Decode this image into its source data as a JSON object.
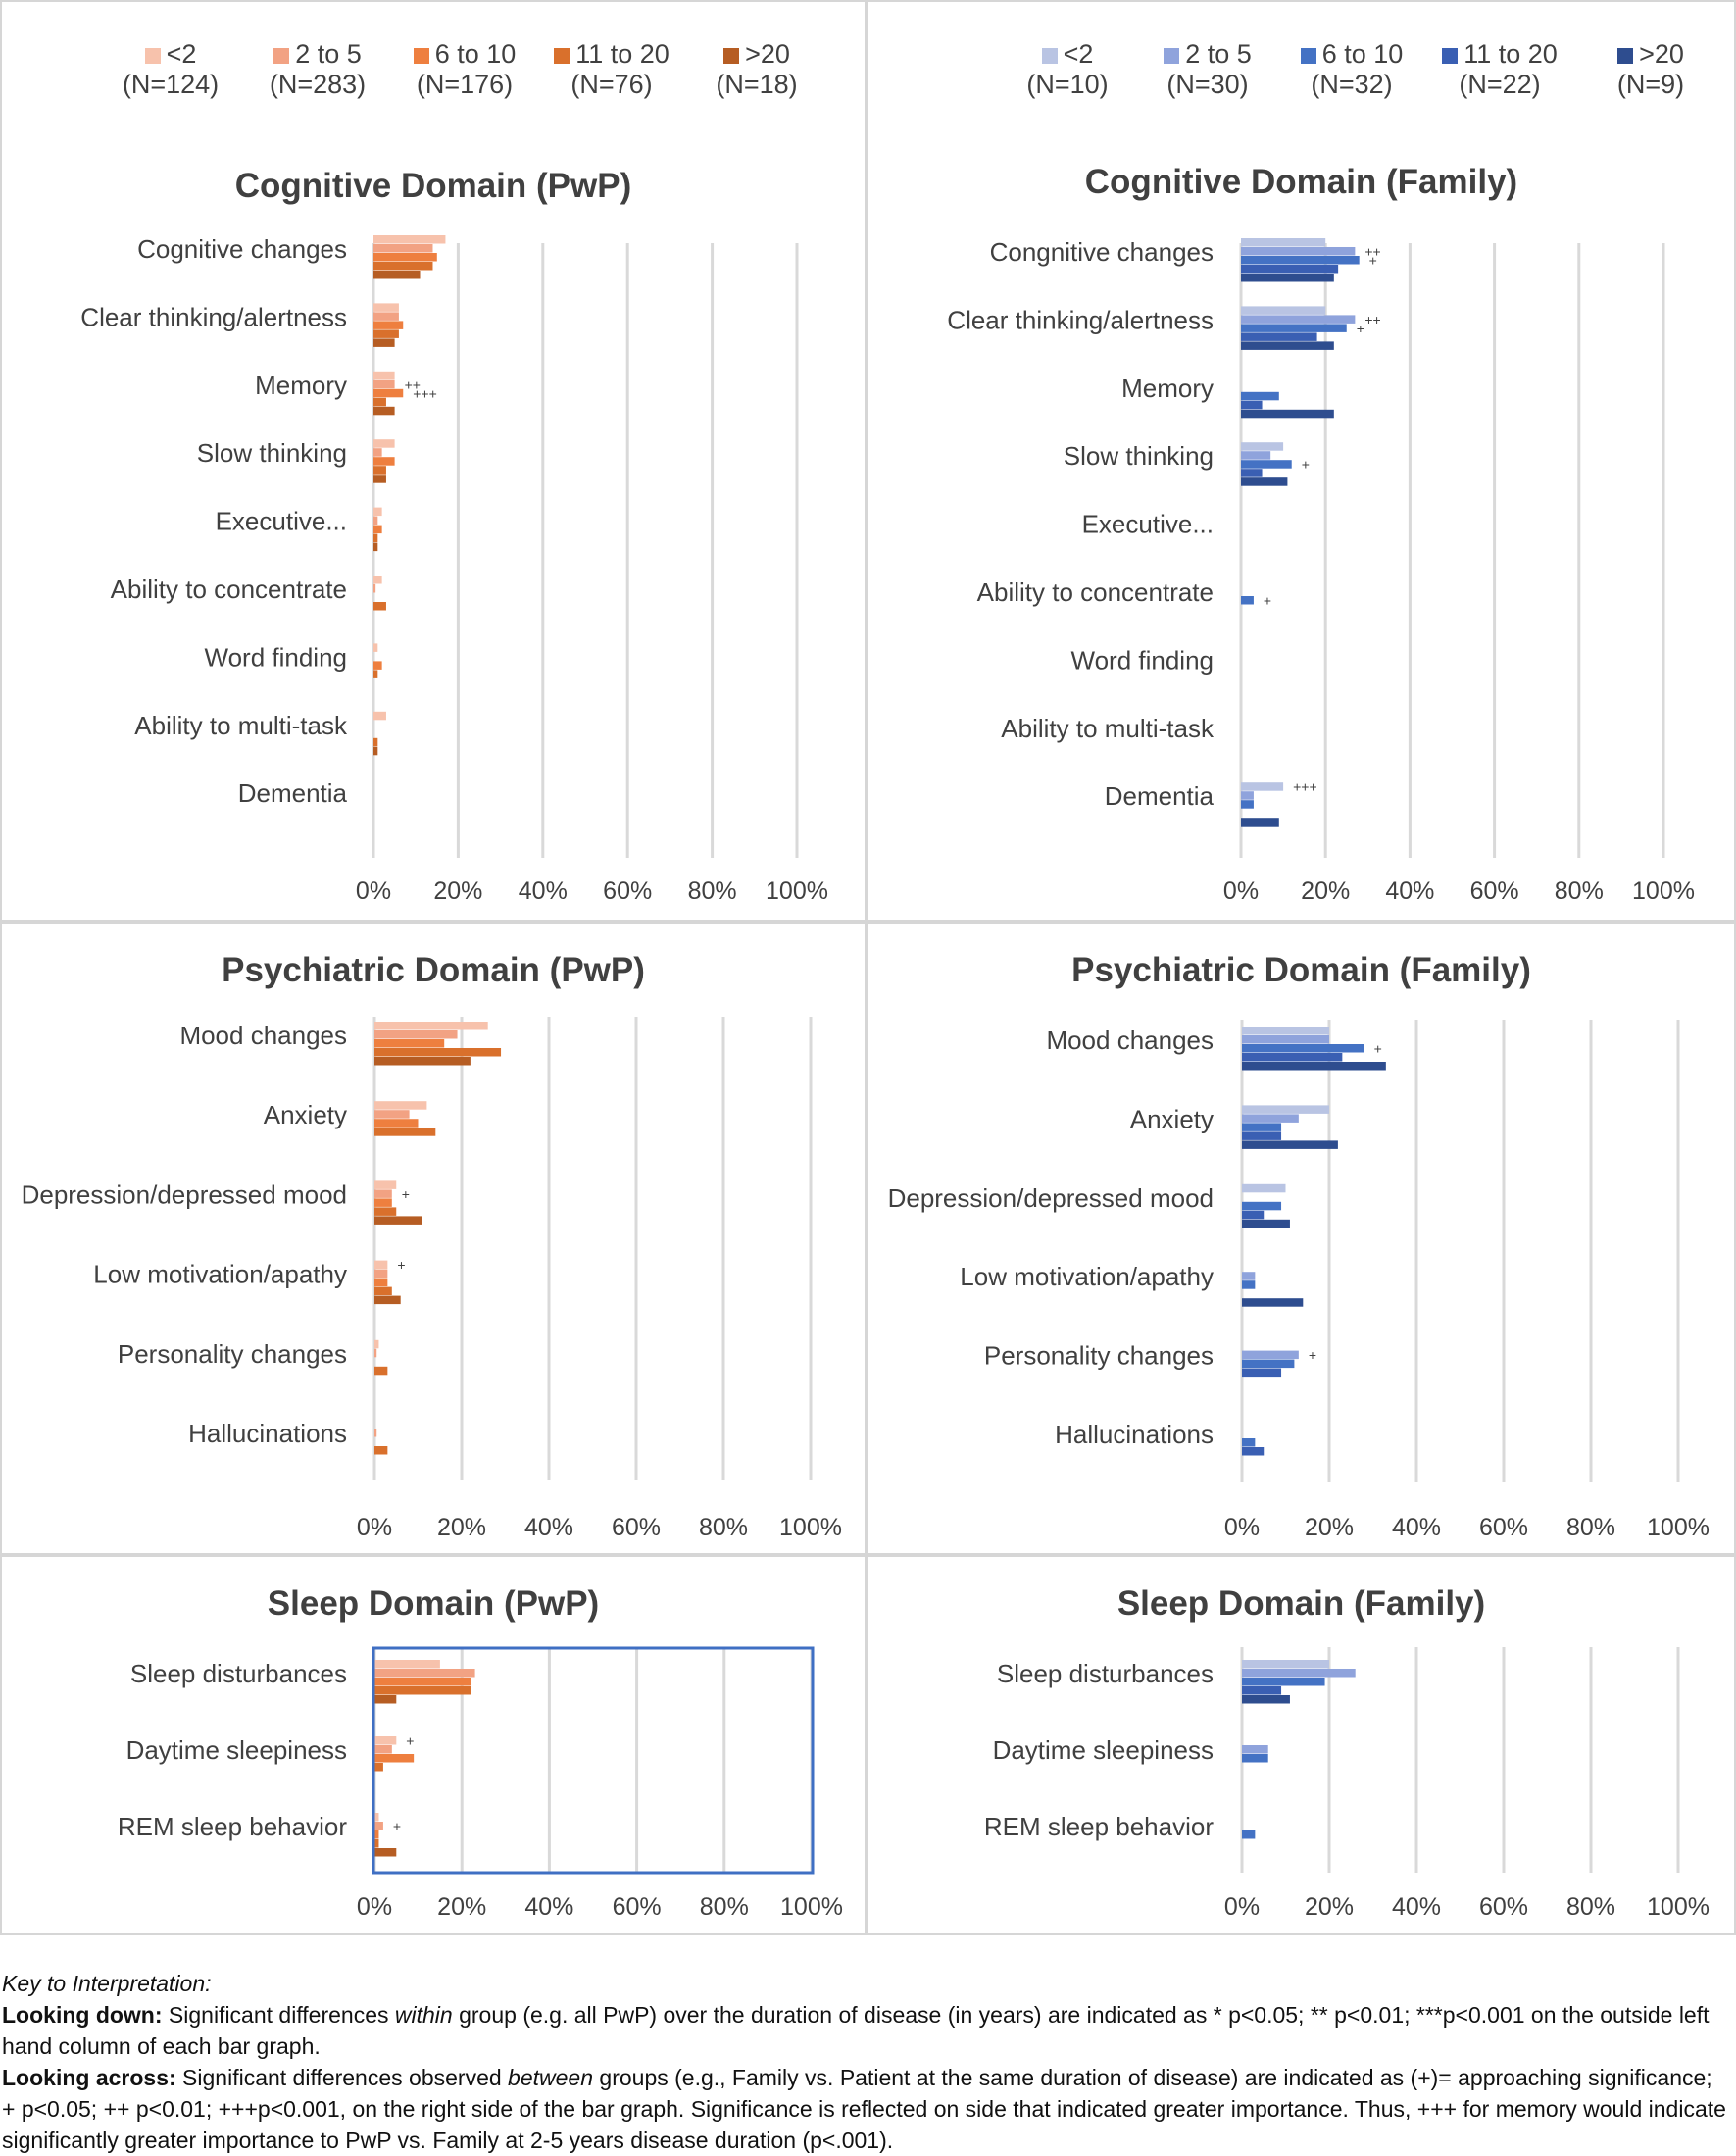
{
  "colors": {
    "pwp": [
      "#f7c2ac",
      "#f2a283",
      "#ee7f3f",
      "#d9702c",
      "#b65d23"
    ],
    "family": [
      "#b9c4e3",
      "#8fa3dc",
      "#4472c4",
      "#3a5fb3",
      "#2e4d8f"
    ],
    "grid": "#d9d9d9",
    "highlight": "#3f6fc3"
  },
  "legend_pwp": [
    {
      "label": "<2",
      "n": "(N=124)"
    },
    {
      "label": "2 to 5",
      "n": "(N=283)"
    },
    {
      "label": "6 to 10",
      "n": "(N=176)"
    },
    {
      "label": "11 to 20",
      "n": "(N=76)"
    },
    {
      "label": ">20",
      "n": "(N=18)"
    }
  ],
  "legend_family": [
    {
      "label": "<2",
      "n": "(N=10)"
    },
    {
      "label": "2 to 5",
      "n": "(N=30)"
    },
    {
      "label": "6 to 10",
      "n": "(N=32)"
    },
    {
      "label": "11 to 20",
      "n": "(N=22)"
    },
    {
      "label": ">20",
      "n": "(N=9)"
    }
  ],
  "chart_data": [
    {
      "type": "bar",
      "orientation": "horizontal",
      "group": "pwp",
      "title": "Cognitive Domain (PwP)",
      "xlim": [
        0,
        100
      ],
      "xticks": [
        "0%",
        "20%",
        "40%",
        "60%",
        "80%",
        "100%"
      ],
      "categories": [
        "Cognitive changes",
        "Clear thinking/alertness",
        "Memory",
        "Slow thinking",
        "Executive...",
        "Ability to concentrate",
        "Word finding",
        "Ability to multi-task",
        "Dementia"
      ],
      "series": [
        {
          "name": "<2",
          "values": [
            17,
            6,
            5,
            5,
            2,
            2,
            1,
            3,
            0
          ]
        },
        {
          "name": "2 to 5",
          "values": [
            14,
            6,
            5,
            2,
            1,
            0.5,
            0,
            0,
            0
          ]
        },
        {
          "name": "6 to 10",
          "values": [
            15,
            7,
            7,
            5,
            2,
            0,
            2,
            0,
            0
          ]
        },
        {
          "name": "11 to 20",
          "values": [
            14,
            6,
            3,
            3,
            1,
            3,
            1,
            1,
            0
          ]
        },
        {
          "name": ">20",
          "values": [
            11,
            5,
            5,
            3,
            1,
            0,
            0,
            1,
            0
          ]
        }
      ],
      "annotations": [
        {
          "category": "Memory",
          "series": "2 to 5",
          "text": "++"
        },
        {
          "category": "Memory",
          "series": "6 to 10",
          "text": "+++"
        }
      ]
    },
    {
      "type": "bar",
      "orientation": "horizontal",
      "group": "family",
      "title": "Cognitive Domain (Family)",
      "xlim": [
        0,
        100
      ],
      "xticks": [
        "0%",
        "20%",
        "40%",
        "60%",
        "80%",
        "100%"
      ],
      "categories": [
        "Congnitive changes",
        "Clear thinking/alertness",
        "Memory",
        "Slow thinking",
        "Executive...",
        "Ability to concentrate",
        "Word finding",
        "Ability to multi-task",
        "Dementia"
      ],
      "series": [
        {
          "name": "<2",
          "values": [
            20,
            20,
            0,
            10,
            0,
            0,
            0,
            0,
            10
          ]
        },
        {
          "name": "2 to 5",
          "values": [
            27,
            27,
            0,
            7,
            0,
            0,
            0,
            0,
            3
          ]
        },
        {
          "name": "6 to 10",
          "values": [
            28,
            25,
            9,
            12,
            0,
            3,
            0,
            0,
            3
          ]
        },
        {
          "name": "11 to 20",
          "values": [
            23,
            18,
            5,
            5,
            0,
            0,
            0,
            0,
            0
          ]
        },
        {
          "name": ">20",
          "values": [
            22,
            22,
            22,
            11,
            0,
            0,
            0,
            0,
            9
          ]
        }
      ],
      "annotations": [
        {
          "category": "Congnitive changes",
          "series": "2 to 5",
          "text": "++"
        },
        {
          "category": "Congnitive changes",
          "series": "6 to 10",
          "text": "+"
        },
        {
          "category": "Clear thinking/alertness",
          "series": "2 to 5",
          "text": "++"
        },
        {
          "category": "Clear thinking/alertness",
          "series": "6 to 10",
          "text": "+"
        },
        {
          "category": "Slow thinking",
          "series": "6 to 10",
          "text": "+"
        },
        {
          "category": "Ability to concentrate",
          "series": "6 to 10",
          "text": "+"
        },
        {
          "category": "Dementia",
          "series": "<2",
          "text": "+++"
        }
      ]
    },
    {
      "type": "bar",
      "orientation": "horizontal",
      "group": "pwp",
      "title": "Psychiatric Domain (PwP)",
      "xlim": [
        0,
        100
      ],
      "xticks": [
        "0%",
        "20%",
        "40%",
        "60%",
        "80%",
        "100%"
      ],
      "categories": [
        "Mood changes",
        "Anxiety",
        "Depression/depressed mood",
        "Low motivation/apathy",
        "Personality changes",
        "Hallucinations"
      ],
      "series": [
        {
          "name": "<2",
          "values": [
            26,
            12,
            5,
            3,
            1,
            0
          ]
        },
        {
          "name": "2 to 5",
          "values": [
            19,
            8,
            4,
            3,
            0.5,
            0.5
          ]
        },
        {
          "name": "6 to 10",
          "values": [
            16,
            10,
            4,
            3,
            0,
            0
          ]
        },
        {
          "name": "11 to 20",
          "values": [
            29,
            14,
            5,
            4,
            3,
            3
          ]
        },
        {
          "name": ">20",
          "values": [
            22,
            0,
            11,
            6,
            0,
            0
          ]
        }
      ],
      "annotations": [
        {
          "category": "Depression/depressed mood",
          "series": "2 to 5",
          "text": "+"
        },
        {
          "category": "Low motivation/apathy",
          "series": "<2",
          "text": "+"
        }
      ]
    },
    {
      "type": "bar",
      "orientation": "horizontal",
      "group": "family",
      "title": "Psychiatric Domain (Family)",
      "xlim": [
        0,
        100
      ],
      "xticks": [
        "0%",
        "20%",
        "40%",
        "60%",
        "80%",
        "100%"
      ],
      "categories": [
        "Mood changes",
        "Anxiety",
        "Depression/depressed mood",
        "Low motivation/apathy",
        "Personality changes",
        "Hallucinations"
      ],
      "series": [
        {
          "name": "<2",
          "values": [
            20,
            20,
            10,
            0,
            0,
            0
          ]
        },
        {
          "name": "2 to 5",
          "values": [
            20,
            13,
            0,
            3,
            13,
            0
          ]
        },
        {
          "name": "6 to 10",
          "values": [
            28,
            9,
            9,
            3,
            12,
            3
          ]
        },
        {
          "name": "11 to 20",
          "values": [
            23,
            9,
            5,
            0,
            9,
            5
          ]
        },
        {
          "name": ">20",
          "values": [
            33,
            22,
            11,
            14,
            0,
            0
          ]
        }
      ],
      "annotations": [
        {
          "category": "Mood changes",
          "series": "6 to 10",
          "text": "+"
        },
        {
          "category": "Personality changes",
          "series": "2 to 5",
          "text": "+"
        }
      ]
    },
    {
      "type": "bar",
      "orientation": "horizontal",
      "group": "pwp",
      "title": "Sleep Domain (PwP)",
      "xlim": [
        0,
        100
      ],
      "xticks": [
        "0%",
        "20%",
        "40%",
        "60%",
        "80%",
        "100%"
      ],
      "categories": [
        "Sleep disturbances",
        "Daytime sleepiness",
        "REM sleep behavior"
      ],
      "series": [
        {
          "name": "<2",
          "values": [
            15,
            5,
            1
          ]
        },
        {
          "name": "2 to 5",
          "values": [
            23,
            4,
            2
          ]
        },
        {
          "name": "6 to 10",
          "values": [
            22,
            9,
            1
          ]
        },
        {
          "name": "11 to 20",
          "values": [
            22,
            2,
            1
          ]
        },
        {
          "name": ">20",
          "values": [
            5,
            0,
            5
          ]
        }
      ],
      "annotations": [
        {
          "category": "Daytime sleepiness",
          "series": "<2",
          "text": "+"
        },
        {
          "category": "REM sleep behavior",
          "series": "2 to 5",
          "text": "+"
        }
      ]
    },
    {
      "type": "bar",
      "orientation": "horizontal",
      "group": "family",
      "title": "Sleep Domain (Family)",
      "xlim": [
        0,
        100
      ],
      "xticks": [
        "0%",
        "20%",
        "40%",
        "60%",
        "80%",
        "100%"
      ],
      "categories": [
        "Sleep disturbances",
        "Daytime sleepiness",
        "REM sleep behavior"
      ],
      "series": [
        {
          "name": "<2",
          "values": [
            20,
            0,
            0
          ]
        },
        {
          "name": "2 to 5",
          "values": [
            26,
            6,
            0
          ]
        },
        {
          "name": "6 to 10",
          "values": [
            19,
            6,
            3
          ]
        },
        {
          "name": "11 to 20",
          "values": [
            9,
            0,
            0
          ]
        },
        {
          "name": ">20",
          "values": [
            11,
            0,
            0
          ]
        }
      ],
      "annotations": []
    }
  ],
  "key": {
    "heading": "Key to Interpretation:",
    "down_label": "Looking down:",
    "down_text_1": " Significant differences ",
    "down_within": "within",
    "down_text_2": " group (e.g. all PwP) over the duration of disease (in years) are indicated as * p<0.05; ** p<0.01; ***p<0.001 on the outside left hand column of each bar graph.",
    "across_label": "Looking across:",
    "across_text_1": " Significant differences observed ",
    "across_between": "between",
    "across_text_2": " groups (e.g., Family vs. Patient at the same duration of disease) are indicated as  (+)= approaching significance; + p<0.05; ++ p<0.01; +++p<0.001, on the right side of the bar graph.  Significance is reflected on side that indicated greater importance. Thus, +++ for memory would indicate significantly greater importance to PwP vs. Family at 2-5 years disease duration (p<.001)."
  }
}
